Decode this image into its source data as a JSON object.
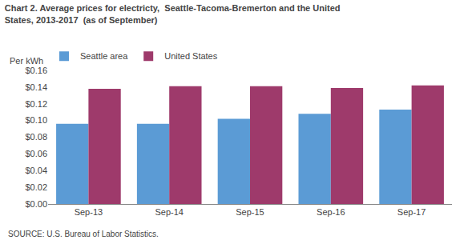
{
  "chart_data": {
    "type": "bar",
    "title": "Chart 2. Average prices for electricty,  Seattle-Tacoma-Bremerton and the United",
    "subtitle": "States, 2013-2017  (as of September)",
    "ylabel": "Per kWh",
    "annotations": [
      "SOURCE: U.S. Bureau of Labor Statistics."
    ],
    "categories": [
      "Sep-13",
      "Sep-14",
      "Sep-15",
      "Sep-16",
      "Sep-17"
    ],
    "series": [
      {
        "name": "Seattle area",
        "color": "#5B9BD5",
        "values": [
          0.096,
          0.096,
          0.102,
          0.108,
          0.113
        ]
      },
      {
        "name": "United States",
        "color": "#9E3A6B",
        "values": [
          0.138,
          0.141,
          0.141,
          0.139,
          0.142
        ]
      }
    ],
    "ylim": [
      0,
      0.16
    ],
    "yticks": [
      {
        "value": 0.0,
        "label": "$0.00"
      },
      {
        "value": 0.02,
        "label": "$0.02"
      },
      {
        "value": 0.04,
        "label": "$0.04"
      },
      {
        "value": 0.06,
        "label": "$0.06"
      },
      {
        "value": 0.08,
        "label": "$0.08"
      },
      {
        "value": 0.1,
        "label": "$0.10"
      },
      {
        "value": 0.12,
        "label": "$0.12"
      },
      {
        "value": 0.14,
        "label": "$0.14"
      },
      {
        "value": 0.16,
        "label": "$0.16"
      }
    ],
    "grid": false,
    "legend": "top left"
  }
}
